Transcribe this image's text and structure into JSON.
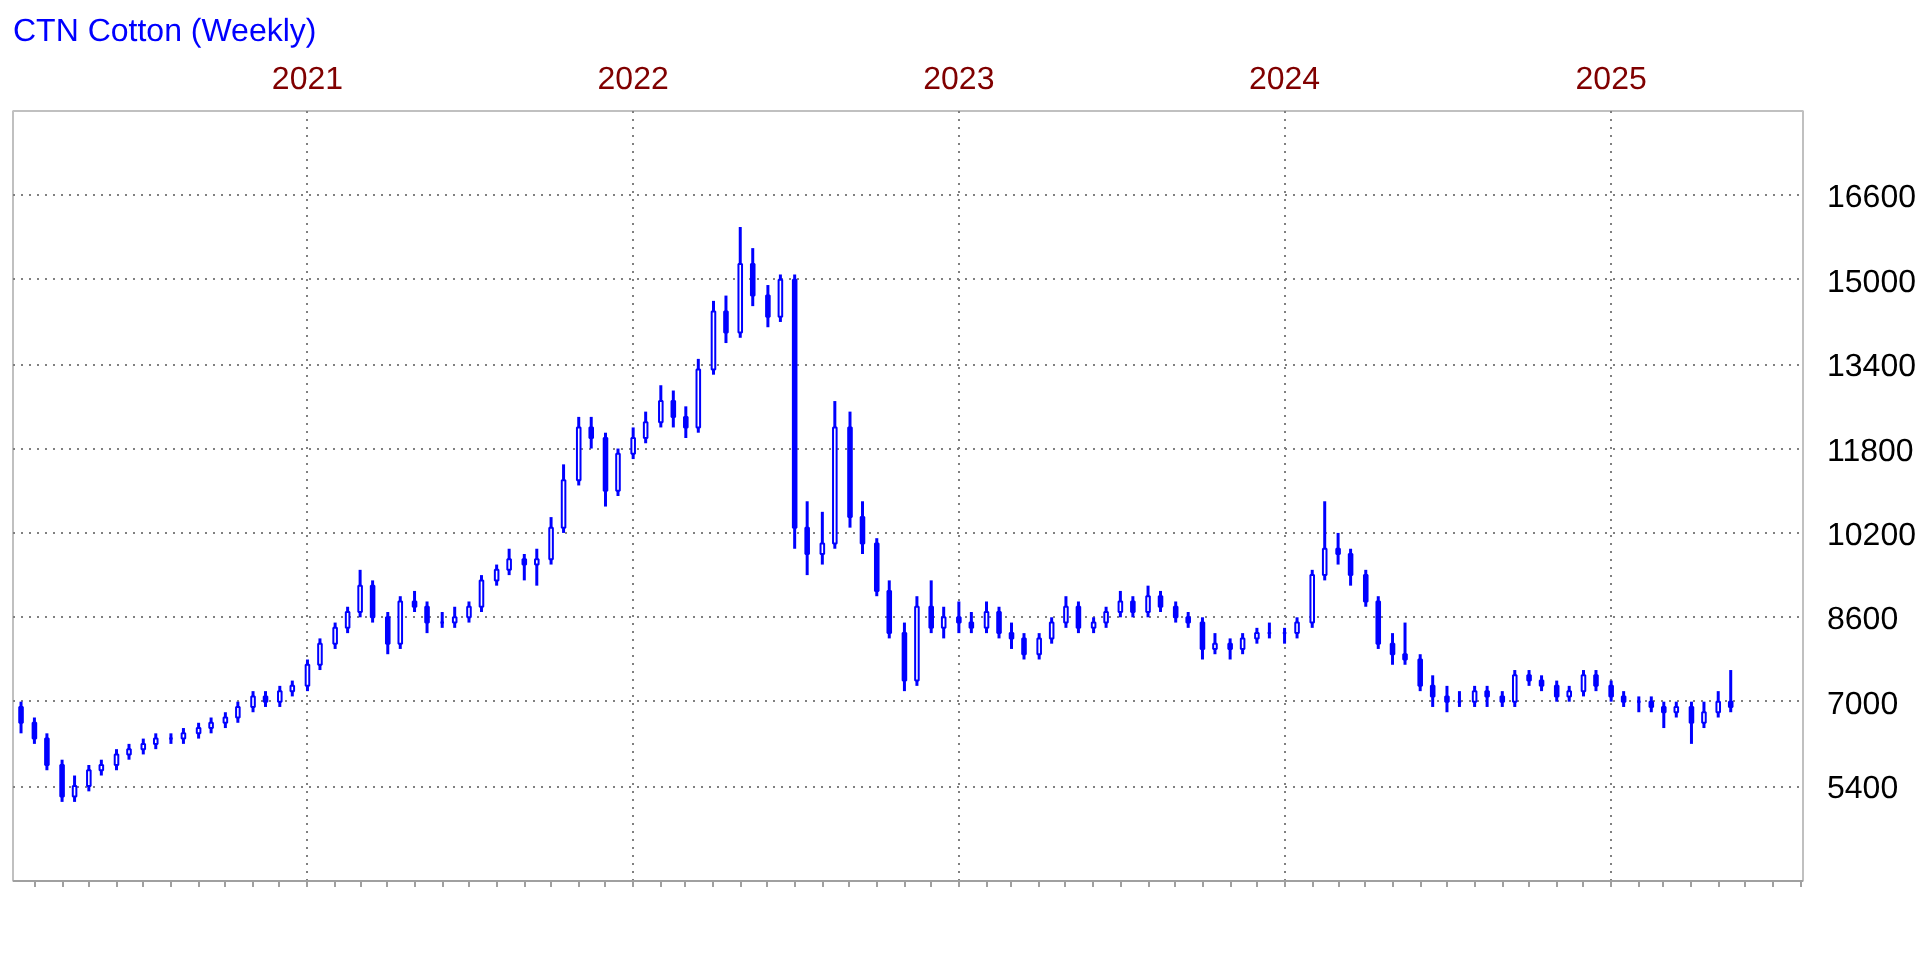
{
  "chart_data": {
    "type": "candlestick",
    "title": "CTN Cotton (Weekly)",
    "color": "#0000ff",
    "x": [
      "2020-02-15",
      "2020-03-01",
      "2020-03-15",
      "2020-04-01",
      "2020-04-15",
      "2020-05-01",
      "2020-05-15",
      "2020-06-01",
      "2020-06-15",
      "2020-07-01",
      "2020-07-15",
      "2020-08-01",
      "2020-08-15",
      "2020-09-01",
      "2020-09-15",
      "2020-10-01",
      "2020-10-15",
      "2020-11-01",
      "2020-11-15",
      "2020-12-01",
      "2020-12-15",
      "2021-01-01",
      "2021-01-15",
      "2021-02-01",
      "2021-02-15",
      "2021-03-01",
      "2021-03-15",
      "2021-04-01",
      "2021-04-15",
      "2021-05-01",
      "2021-05-15",
      "2021-06-01",
      "2021-06-15",
      "2021-07-01",
      "2021-07-15",
      "2021-08-01",
      "2021-08-15",
      "2021-09-01",
      "2021-09-15",
      "2021-10-01",
      "2021-10-15",
      "2021-11-01",
      "2021-11-15",
      "2021-12-01",
      "2021-12-15",
      "2022-01-01",
      "2022-01-15",
      "2022-02-01",
      "2022-02-15",
      "2022-03-01",
      "2022-03-15",
      "2022-04-01",
      "2022-04-15",
      "2022-05-01",
      "2022-05-15",
      "2022-06-01",
      "2022-06-15",
      "2022-07-01",
      "2022-07-15",
      "2022-08-01",
      "2022-08-15",
      "2022-09-01",
      "2022-09-15",
      "2022-10-01",
      "2022-10-15",
      "2022-11-01",
      "2022-11-15",
      "2022-12-01",
      "2022-12-15",
      "2023-01-01",
      "2023-01-15",
      "2023-02-01",
      "2023-02-15",
      "2023-03-01",
      "2023-03-15",
      "2023-04-01",
      "2023-04-15",
      "2023-05-01",
      "2023-05-15",
      "2023-06-01",
      "2023-06-15",
      "2023-07-01",
      "2023-07-15",
      "2023-08-01",
      "2023-08-15",
      "2023-09-01",
      "2023-09-15",
      "2023-10-01",
      "2023-10-15",
      "2023-11-01",
      "2023-11-15",
      "2023-12-01",
      "2023-12-15",
      "2024-01-01",
      "2024-01-15",
      "2024-02-01",
      "2024-02-15",
      "2024-03-01",
      "2024-03-15",
      "2024-04-01",
      "2024-04-15",
      "2024-05-01",
      "2024-05-15",
      "2024-06-01",
      "2024-06-15",
      "2024-07-01",
      "2024-07-15",
      "2024-08-01",
      "2024-08-15",
      "2024-09-01",
      "2024-09-15",
      "2024-10-01",
      "2024-10-15",
      "2024-11-01",
      "2024-11-15",
      "2024-12-01",
      "2024-12-15",
      "2025-01-01",
      "2025-01-15",
      "2025-02-01",
      "2025-02-15",
      "2025-03-01",
      "2025-03-15",
      "2025-04-01",
      "2025-04-15",
      "2025-05-01",
      "2025-05-15"
    ],
    "ohlc": [
      [
        6900,
        7000,
        6400,
        6600
      ],
      [
        6600,
        6700,
        6200,
        6300
      ],
      [
        6300,
        6400,
        5700,
        5800
      ],
      [
        5800,
        5900,
        5100,
        5200
      ],
      [
        5200,
        5600,
        5100,
        5400
      ],
      [
        5400,
        5800,
        5300,
        5700
      ],
      [
        5700,
        5900,
        5600,
        5800
      ],
      [
        5800,
        6100,
        5700,
        6000
      ],
      [
        6000,
        6200,
        5900,
        6100
      ],
      [
        6100,
        6300,
        6000,
        6200
      ],
      [
        6200,
        6400,
        6100,
        6300
      ],
      [
        6300,
        6400,
        6200,
        6300
      ],
      [
        6300,
        6500,
        6200,
        6400
      ],
      [
        6400,
        6600,
        6300,
        6500
      ],
      [
        6500,
        6700,
        6400,
        6600
      ],
      [
        6600,
        6800,
        6500,
        6700
      ],
      [
        6700,
        7000,
        6600,
        6900
      ],
      [
        6900,
        7200,
        6800,
        7100
      ],
      [
        7100,
        7200,
        6900,
        7000
      ],
      [
        7000,
        7300,
        6900,
        7200
      ],
      [
        7200,
        7400,
        7100,
        7300
      ],
      [
        7300,
        7800,
        7200,
        7700
      ],
      [
        7700,
        8200,
        7600,
        8100
      ],
      [
        8100,
        8500,
        8000,
        8400
      ],
      [
        8400,
        8800,
        8300,
        8700
      ],
      [
        8700,
        9500,
        8600,
        9200
      ],
      [
        9200,
        9300,
        8500,
        8600
      ],
      [
        8600,
        8700,
        7900,
        8100
      ],
      [
        8100,
        9000,
        8000,
        8900
      ],
      [
        8900,
        9100,
        8700,
        8800
      ],
      [
        8800,
        8900,
        8300,
        8500
      ],
      [
        8500,
        8700,
        8400,
        8500
      ],
      [
        8500,
        8800,
        8400,
        8600
      ],
      [
        8600,
        8900,
        8500,
        8800
      ],
      [
        8800,
        9400,
        8700,
        9300
      ],
      [
        9300,
        9600,
        9200,
        9500
      ],
      [
        9500,
        9900,
        9400,
        9700
      ],
      [
        9700,
        9800,
        9300,
        9600
      ],
      [
        9600,
        9900,
        9200,
        9700
      ],
      [
        9700,
        10500,
        9600,
        10300
      ],
      [
        10300,
        11500,
        10200,
        11200
      ],
      [
        11200,
        12400,
        11100,
        12200
      ],
      [
        12200,
        12400,
        11800,
        12000
      ],
      [
        12000,
        12100,
        10700,
        11000
      ],
      [
        11000,
        11800,
        10900,
        11700
      ],
      [
        11700,
        12200,
        11600,
        12000
      ],
      [
        12000,
        12500,
        11900,
        12300
      ],
      [
        12300,
        13000,
        12200,
        12700
      ],
      [
        12700,
        12900,
        12200,
        12400
      ],
      [
        12400,
        12600,
        12000,
        12200
      ],
      [
        12200,
        13500,
        12100,
        13300
      ],
      [
        13300,
        14600,
        13200,
        14400
      ],
      [
        14400,
        14700,
        13800,
        14000
      ],
      [
        14000,
        16000,
        13900,
        15300
      ],
      [
        15300,
        15600,
        14500,
        14700
      ],
      [
        14700,
        14900,
        14100,
        14300
      ],
      [
        14300,
        15100,
        14200,
        15000
      ],
      [
        15000,
        15100,
        9900,
        10300
      ],
      [
        10300,
        10800,
        9400,
        9800
      ],
      [
        9800,
        10600,
        9600,
        10000
      ],
      [
        10000,
        12700,
        9900,
        12200
      ],
      [
        12200,
        12500,
        10300,
        10500
      ],
      [
        10500,
        10800,
        9800,
        10000
      ],
      [
        10000,
        10100,
        9000,
        9100
      ],
      [
        9100,
        9300,
        8200,
        8300
      ],
      [
        8300,
        8500,
        7200,
        7400
      ],
      [
        7400,
        9000,
        7300,
        8800
      ],
      [
        8800,
        9300,
        8300,
        8400
      ],
      [
        8400,
        8800,
        8200,
        8600
      ],
      [
        8600,
        8900,
        8300,
        8500
      ],
      [
        8500,
        8700,
        8300,
        8400
      ],
      [
        8400,
        8900,
        8300,
        8700
      ],
      [
        8700,
        8800,
        8200,
        8300
      ],
      [
        8300,
        8500,
        8000,
        8200
      ],
      [
        8200,
        8300,
        7800,
        7900
      ],
      [
        7900,
        8300,
        7800,
        8200
      ],
      [
        8200,
        8600,
        8100,
        8500
      ],
      [
        8500,
        9000,
        8400,
        8800
      ],
      [
        8800,
        8900,
        8300,
        8400
      ],
      [
        8400,
        8600,
        8300,
        8500
      ],
      [
        8500,
        8800,
        8400,
        8700
      ],
      [
        8700,
        9100,
        8600,
        8900
      ],
      [
        8900,
        9000,
        8600,
        8700
      ],
      [
        8700,
        9200,
        8600,
        9000
      ],
      [
        9000,
        9100,
        8700,
        8800
      ],
      [
        8800,
        8900,
        8500,
        8600
      ],
      [
        8600,
        8700,
        8400,
        8500
      ],
      [
        8500,
        8600,
        7800,
        8000
      ],
      [
        8000,
        8300,
        7900,
        8100
      ],
      [
        8100,
        8200,
        7800,
        8000
      ],
      [
        8000,
        8300,
        7900,
        8200
      ],
      [
        8200,
        8400,
        8100,
        8300
      ],
      [
        8300,
        8500,
        8200,
        8300
      ],
      [
        8300,
        8400,
        8100,
        8300
      ],
      [
        8300,
        8600,
        8200,
        8500
      ],
      [
        8500,
        9500,
        8400,
        9400
      ],
      [
        9400,
        10800,
        9300,
        9900
      ],
      [
        9900,
        10200,
        9600,
        9800
      ],
      [
        9800,
        9900,
        9200,
        9400
      ],
      [
        9400,
        9500,
        8800,
        8900
      ],
      [
        8900,
        9000,
        8000,
        8100
      ],
      [
        8100,
        8300,
        7700,
        7900
      ],
      [
        7900,
        8500,
        7700,
        7800
      ],
      [
        7800,
        7900,
        7200,
        7300
      ],
      [
        7300,
        7500,
        6900,
        7100
      ],
      [
        7100,
        7300,
        6800,
        7000
      ],
      [
        7000,
        7200,
        6900,
        7000
      ],
      [
        7000,
        7300,
        6900,
        7200
      ],
      [
        7200,
        7300,
        6900,
        7100
      ],
      [
        7100,
        7200,
        6900,
        7000
      ],
      [
        7000,
        7600,
        6900,
        7500
      ],
      [
        7500,
        7600,
        7300,
        7400
      ],
      [
        7400,
        7500,
        7200,
        7300
      ],
      [
        7300,
        7400,
        7000,
        7100
      ],
      [
        7100,
        7300,
        7000,
        7200
      ],
      [
        7200,
        7600,
        7100,
        7500
      ],
      [
        7500,
        7600,
        7200,
        7300
      ],
      [
        7300,
        7400,
        7000,
        7100
      ],
      [
        7100,
        7200,
        6900,
        7000
      ],
      [
        7000,
        7100,
        6800,
        7000
      ],
      [
        7000,
        7100,
        6800,
        6900
      ],
      [
        6900,
        7000,
        6500,
        6800
      ],
      [
        6800,
        7000,
        6700,
        6900
      ],
      [
        6900,
        7000,
        6200,
        6600
      ],
      [
        6600,
        7000,
        6500,
        6800
      ],
      [
        6800,
        7200,
        6700,
        7000
      ],
      [
        7000,
        7600,
        6800,
        6900
      ]
    ],
    "xlim": [
      "2020-02-06",
      "2025-08-04"
    ],
    "xticks": [
      {
        "value": "2021-01-01",
        "label": "2021"
      },
      {
        "value": "2022-01-01",
        "label": "2022"
      },
      {
        "value": "2023-01-01",
        "label": "2023"
      },
      {
        "value": "2024-01-01",
        "label": "2024"
      },
      {
        "value": "2025-01-01",
        "label": "2025"
      }
    ],
    "ylim": [
      3600,
      18200
    ],
    "yticks": [
      5400,
      7000,
      8600,
      10200,
      11800,
      13400,
      15000,
      16600
    ],
    "grid": true
  }
}
